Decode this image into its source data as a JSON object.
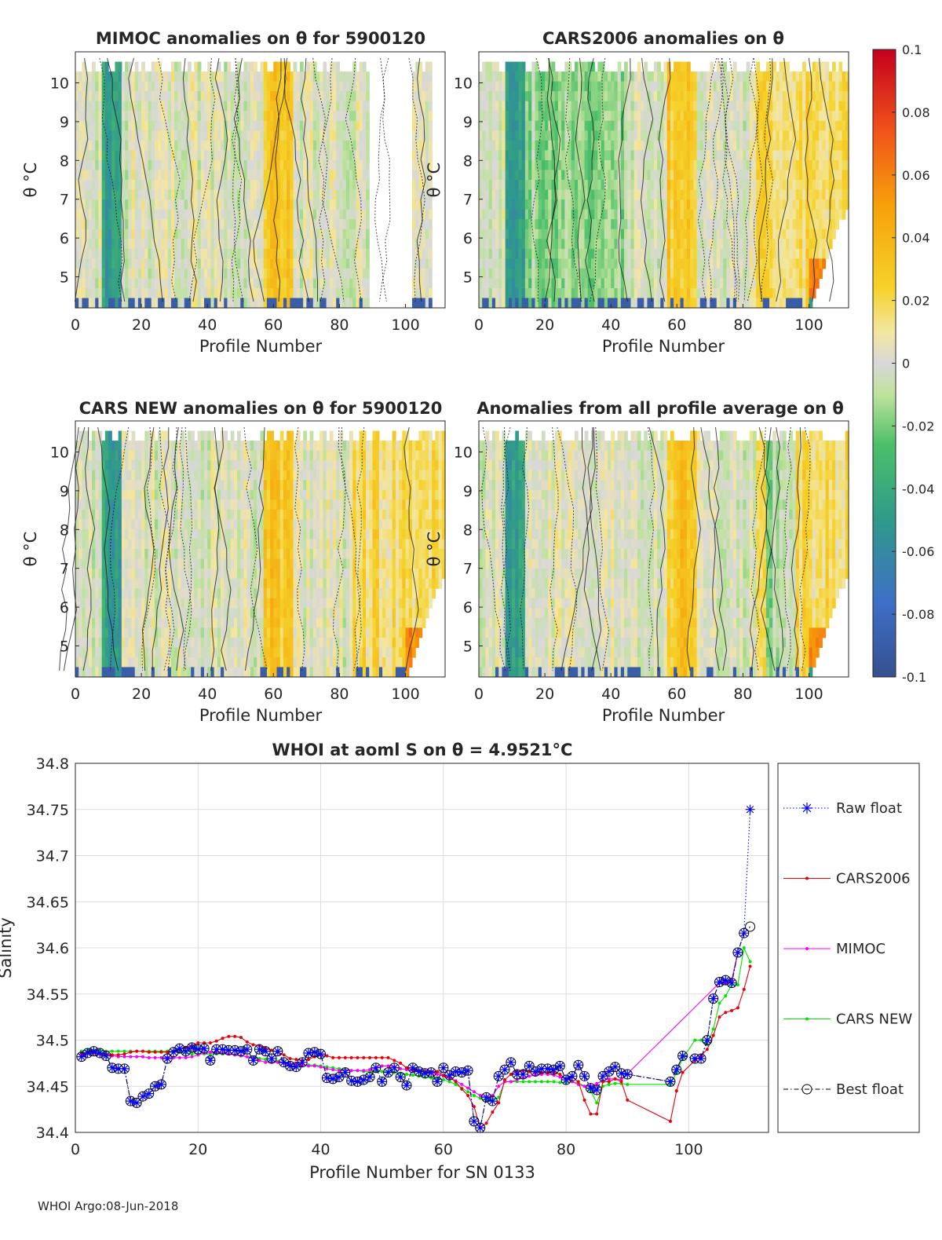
{
  "footer": "WHOI Argo:08-Jun-2018",
  "panels": [
    {
      "title": "MIMOC anomalies on θ  for 5900120",
      "xlabel": "Profile Number",
      "ylabel": "θ °C",
      "seed": 11,
      "nProfiles": 89,
      "extraCols": [
        103,
        108
      ],
      "mode": "mimoc"
    },
    {
      "title": "CARS2006 anomalies on θ",
      "xlabel": "Profile Number",
      "ylabel": "θ °C",
      "seed": 23,
      "nProfiles": 112,
      "mode": "cars"
    },
    {
      "title": "CARS NEW anomalies on θ for 5900120",
      "xlabel": "Profile Number",
      "ylabel": "θ °C",
      "seed": 37,
      "nProfiles": 112,
      "mode": "carsnew"
    },
    {
      "title": "Anomalies from all profile average on θ",
      "xlabel": "Profile Number",
      "ylabel": "θ °C",
      "seed": 51,
      "nProfiles": 112,
      "mode": "avg"
    }
  ],
  "panel_axes": {
    "x_ticks": [
      "0",
      "20",
      "40",
      "60",
      "80",
      "100"
    ],
    "y_ticks": [
      "5",
      "6",
      "7",
      "8",
      "9",
      "10"
    ],
    "xlim": [
      0,
      112
    ],
    "ylim": [
      4.2,
      10.8
    ]
  },
  "colorbar": {
    "ticks": [
      "0.1",
      "0.08",
      "0.06",
      "0.04",
      "0.02",
      "0",
      "-0.02",
      "-0.04",
      "-0.06",
      "-0.08",
      "-0.1"
    ],
    "range": [
      -0.1,
      0.1
    ]
  },
  "chart_data": {
    "type": "line",
    "title": "WHOI at aoml S on θ = 4.9521°C",
    "xlabel": "Profile Number for SN 0133",
    "ylabel": "Salinity",
    "xlim": [
      0,
      113
    ],
    "ylim": [
      34.4,
      34.8
    ],
    "x_ticks": [
      "0",
      "20",
      "40",
      "60",
      "80",
      "100"
    ],
    "y_ticks": [
      "34.4",
      "34.45",
      "34.5",
      "34.55",
      "34.6",
      "34.65",
      "34.7",
      "34.75",
      "34.8"
    ],
    "grid": true,
    "legend_position": "right",
    "series": [
      {
        "name": "Raw float",
        "color": "#0000ff",
        "style": "dotted-star",
        "x": [
          1,
          2,
          3,
          4,
          5,
          6,
          7,
          8,
          9,
          10,
          11,
          12,
          13,
          14,
          15,
          16,
          17,
          18,
          19,
          20,
          21,
          22,
          23,
          24,
          25,
          26,
          27,
          28,
          29,
          30,
          31,
          32,
          33,
          34,
          35,
          36,
          37,
          38,
          39,
          40,
          41,
          42,
          43,
          44,
          45,
          46,
          47,
          48,
          49,
          50,
          51,
          52,
          53,
          54,
          55,
          56,
          57,
          58,
          59,
          60,
          61,
          62,
          63,
          64,
          65,
          66,
          67,
          68,
          69,
          70,
          71,
          72,
          73,
          74,
          75,
          76,
          77,
          78,
          79,
          80,
          81,
          82,
          83,
          84,
          85,
          86,
          87,
          88,
          89,
          90,
          97,
          98,
          99,
          101,
          102,
          103,
          104,
          105,
          106,
          107,
          108,
          109,
          110
        ],
        "y": [
          34.482,
          34.486,
          34.488,
          34.486,
          34.483,
          34.47,
          34.469,
          34.469,
          34.434,
          34.432,
          34.439,
          34.442,
          34.45,
          34.452,
          34.48,
          34.487,
          34.491,
          34.488,
          34.492,
          34.49,
          34.491,
          34.478,
          34.49,
          34.49,
          34.489,
          34.489,
          34.488,
          34.49,
          34.478,
          34.49,
          34.488,
          34.48,
          34.488,
          34.476,
          34.472,
          34.471,
          34.476,
          34.486,
          34.487,
          34.485,
          34.459,
          34.458,
          34.46,
          34.465,
          34.456,
          34.455,
          34.457,
          34.46,
          34.47,
          34.455,
          34.465,
          34.47,
          34.46,
          34.451,
          34.47,
          34.466,
          34.464,
          34.465,
          34.455,
          34.47,
          34.462,
          34.466,
          34.465,
          34.467,
          34.412,
          34.405,
          34.438,
          34.434,
          34.461,
          34.468,
          34.476,
          34.463,
          34.463,
          34.472,
          34.466,
          34.469,
          34.469,
          34.468,
          34.472,
          34.457,
          34.461,
          34.473,
          34.461,
          34.448,
          34.446,
          34.461,
          34.466,
          34.471,
          34.464,
          34.463,
          34.455,
          34.468,
          34.483,
          34.48,
          34.48,
          34.5,
          34.545,
          34.563,
          34.565,
          34.562,
          34.595,
          34.616,
          34.75
        ]
      },
      {
        "name": "CARS2006",
        "color": "#e8000b",
        "style": "solid-dot",
        "x": [
          1,
          2,
          3,
          4,
          5,
          6,
          7,
          8,
          9,
          10,
          11,
          12,
          13,
          14,
          15,
          16,
          17,
          18,
          19,
          20,
          21,
          22,
          23,
          24,
          25,
          26,
          27,
          28,
          29,
          30,
          31,
          32,
          33,
          34,
          35,
          36,
          37,
          38,
          39,
          40,
          41,
          42,
          43,
          44,
          45,
          46,
          47,
          48,
          49,
          50,
          51,
          52,
          53,
          54,
          55,
          56,
          57,
          58,
          59,
          60,
          61,
          62,
          63,
          64,
          65,
          66,
          67,
          68,
          69,
          70,
          71,
          72,
          73,
          74,
          75,
          76,
          77,
          78,
          79,
          80,
          81,
          82,
          83,
          84,
          85,
          86,
          87,
          88,
          89,
          90,
          97,
          98,
          99,
          101,
          102,
          103,
          104,
          105,
          106,
          107,
          108,
          109,
          110
        ],
        "y": [
          34.486,
          34.487,
          34.487,
          34.486,
          34.485,
          34.484,
          34.484,
          34.485,
          34.487,
          34.488,
          34.488,
          34.487,
          34.487,
          34.487,
          34.487,
          34.488,
          34.49,
          34.492,
          34.494,
          34.497,
          34.497,
          34.497,
          34.499,
          34.502,
          34.504,
          34.504,
          34.503,
          34.498,
          34.495,
          34.494,
          34.491,
          34.489,
          34.487,
          34.484,
          34.48,
          34.479,
          34.478,
          34.479,
          34.482,
          34.484,
          34.483,
          34.481,
          34.481,
          34.481,
          34.481,
          34.481,
          34.481,
          34.481,
          34.481,
          34.481,
          34.481,
          34.478,
          34.475,
          34.47,
          34.468,
          34.467,
          34.466,
          34.466,
          34.466,
          34.462,
          34.46,
          34.455,
          34.447,
          34.44,
          34.428,
          34.405,
          34.41,
          34.422,
          34.432,
          34.457,
          34.463,
          34.466,
          34.467,
          34.466,
          34.465,
          34.465,
          34.465,
          34.465,
          34.463,
          34.458,
          34.46,
          34.455,
          34.435,
          34.42,
          34.42,
          34.455,
          34.455,
          34.458,
          34.455,
          34.435,
          34.412,
          34.445,
          34.465,
          34.478,
          34.483,
          34.49,
          34.505,
          34.525,
          34.53,
          34.532,
          34.535,
          34.555,
          34.58
        ]
      },
      {
        "name": "MIMOC",
        "color": "#ff00ff",
        "style": "solid-dot",
        "x": [
          1,
          2,
          3,
          4,
          5,
          6,
          7,
          8,
          9,
          10,
          11,
          12,
          13,
          14,
          15,
          16,
          17,
          18,
          19,
          20,
          21,
          22,
          23,
          24,
          25,
          26,
          27,
          28,
          29,
          30,
          31,
          32,
          33,
          34,
          35,
          36,
          37,
          38,
          39,
          40,
          41,
          42,
          43,
          44,
          45,
          46,
          47,
          48,
          49,
          50,
          51,
          52,
          53,
          54,
          55,
          56,
          57,
          58,
          59,
          60,
          61,
          62,
          63,
          64,
          65,
          66,
          67,
          68,
          69,
          70,
          71,
          72,
          73,
          74,
          75,
          76,
          77,
          78,
          79,
          80,
          81,
          82,
          83,
          84,
          85,
          86,
          87,
          88,
          89,
          105,
          106,
          107,
          108
        ],
        "y": [
          34.485,
          34.486,
          34.486,
          34.485,
          34.484,
          34.483,
          34.482,
          34.482,
          34.482,
          34.482,
          34.482,
          34.481,
          34.481,
          34.481,
          34.481,
          34.481,
          34.481,
          34.481,
          34.482,
          34.484,
          34.486,
          34.487,
          34.487,
          34.486,
          34.485,
          34.484,
          34.483,
          34.482,
          34.48,
          34.478,
          34.476,
          34.476,
          34.476,
          34.475,
          34.474,
          34.474,
          34.473,
          34.472,
          34.472,
          34.471,
          34.469,
          34.468,
          34.467,
          34.467,
          34.467,
          34.467,
          34.467,
          34.468,
          34.47,
          34.472,
          34.472,
          34.471,
          34.469,
          34.468,
          34.467,
          34.466,
          34.466,
          34.465,
          34.463,
          34.461,
          34.459,
          34.456,
          34.452,
          34.448,
          34.444,
          34.44,
          34.438,
          34.44,
          34.45,
          34.455,
          34.455,
          34.457,
          34.459,
          34.461,
          34.462,
          34.463,
          34.463,
          34.462,
          34.46,
          34.458,
          34.455,
          34.452,
          34.45,
          34.45,
          34.453,
          34.456,
          34.458,
          34.458,
          34.457,
          34.562,
          34.562,
          34.565,
          34.595
        ]
      },
      {
        "name": "CARS NEW",
        "color": "#00e600",
        "style": "solid-dot",
        "x": [
          1,
          2,
          3,
          4,
          5,
          6,
          7,
          8,
          9,
          10,
          11,
          12,
          13,
          14,
          15,
          16,
          17,
          18,
          19,
          20,
          21,
          22,
          23,
          24,
          25,
          26,
          27,
          28,
          29,
          30,
          31,
          32,
          33,
          34,
          35,
          36,
          37,
          38,
          39,
          40,
          41,
          42,
          43,
          44,
          45,
          46,
          47,
          48,
          49,
          50,
          51,
          52,
          53,
          54,
          55,
          56,
          57,
          58,
          59,
          60,
          61,
          62,
          63,
          64,
          65,
          66,
          67,
          68,
          69,
          70,
          71,
          72,
          73,
          74,
          75,
          76,
          77,
          78,
          79,
          80,
          81,
          82,
          83,
          84,
          85,
          86,
          87,
          88,
          89,
          90,
          97,
          98,
          99,
          101,
          102,
          103,
          104,
          105,
          106,
          107,
          108,
          109,
          110
        ],
        "y": [
          34.488,
          34.489,
          34.489,
          34.489,
          34.488,
          34.488,
          34.488,
          34.488,
          34.488,
          34.488,
          34.488,
          34.488,
          34.488,
          34.488,
          34.488,
          34.488,
          34.487,
          34.486,
          34.485,
          34.485,
          34.485,
          34.485,
          34.485,
          34.485,
          34.485,
          34.484,
          34.483,
          34.482,
          34.481,
          34.48,
          34.479,
          34.478,
          34.477,
          34.476,
          34.475,
          34.474,
          34.473,
          34.473,
          34.473,
          34.472,
          34.471,
          34.47,
          34.469,
          34.468,
          34.467,
          34.467,
          34.466,
          34.466,
          34.466,
          34.466,
          34.466,
          34.465,
          34.464,
          34.463,
          34.462,
          34.461,
          34.46,
          34.459,
          34.458,
          34.457,
          34.455,
          34.452,
          34.448,
          34.444,
          34.44,
          34.437,
          34.435,
          34.434,
          34.438,
          34.455,
          34.455,
          34.455,
          34.455,
          34.455,
          34.455,
          34.455,
          34.455,
          34.455,
          34.454,
          34.454,
          34.455,
          34.454,
          34.45,
          34.445,
          34.432,
          34.45,
          34.452,
          34.453,
          34.453,
          34.452,
          34.452,
          34.465,
          34.48,
          34.5,
          34.5,
          34.495,
          34.512,
          34.54,
          34.548,
          34.56,
          34.56,
          34.6,
          34.585
        ]
      },
      {
        "name": "Best float",
        "color": "#000000",
        "style": "dashdot-circle",
        "x": [
          1,
          2,
          3,
          4,
          5,
          6,
          7,
          8,
          9,
          10,
          11,
          12,
          13,
          14,
          15,
          16,
          17,
          18,
          19,
          20,
          21,
          22,
          23,
          24,
          25,
          26,
          27,
          28,
          29,
          30,
          31,
          32,
          33,
          34,
          35,
          36,
          37,
          38,
          39,
          40,
          41,
          42,
          43,
          44,
          45,
          46,
          47,
          48,
          49,
          50,
          51,
          52,
          53,
          54,
          55,
          56,
          57,
          58,
          59,
          60,
          61,
          62,
          63,
          64,
          65,
          66,
          67,
          68,
          69,
          70,
          71,
          72,
          73,
          74,
          75,
          76,
          77,
          78,
          79,
          80,
          81,
          82,
          83,
          84,
          85,
          86,
          87,
          88,
          89,
          90,
          97,
          98,
          99,
          101,
          102,
          103,
          104,
          105,
          106,
          107,
          108,
          109,
          110
        ],
        "y": [
          34.482,
          34.486,
          34.488,
          34.486,
          34.483,
          34.47,
          34.469,
          34.469,
          34.434,
          34.432,
          34.439,
          34.442,
          34.45,
          34.452,
          34.48,
          34.487,
          34.491,
          34.488,
          34.492,
          34.49,
          34.491,
          34.478,
          34.49,
          34.49,
          34.489,
          34.489,
          34.488,
          34.49,
          34.478,
          34.49,
          34.488,
          34.48,
          34.488,
          34.476,
          34.472,
          34.471,
          34.476,
          34.486,
          34.487,
          34.485,
          34.459,
          34.458,
          34.46,
          34.465,
          34.456,
          34.455,
          34.457,
          34.46,
          34.47,
          34.455,
          34.465,
          34.47,
          34.46,
          34.451,
          34.47,
          34.466,
          34.464,
          34.465,
          34.455,
          34.47,
          34.462,
          34.466,
          34.465,
          34.467,
          34.412,
          34.405,
          34.438,
          34.434,
          34.461,
          34.468,
          34.476,
          34.463,
          34.463,
          34.472,
          34.466,
          34.469,
          34.469,
          34.468,
          34.472,
          34.457,
          34.461,
          34.473,
          34.461,
          34.448,
          34.446,
          34.461,
          34.466,
          34.471,
          34.464,
          34.463,
          34.455,
          34.468,
          34.483,
          34.48,
          34.48,
          34.5,
          34.545,
          34.563,
          34.565,
          34.562,
          34.595,
          34.616,
          34.623
        ]
      }
    ]
  }
}
